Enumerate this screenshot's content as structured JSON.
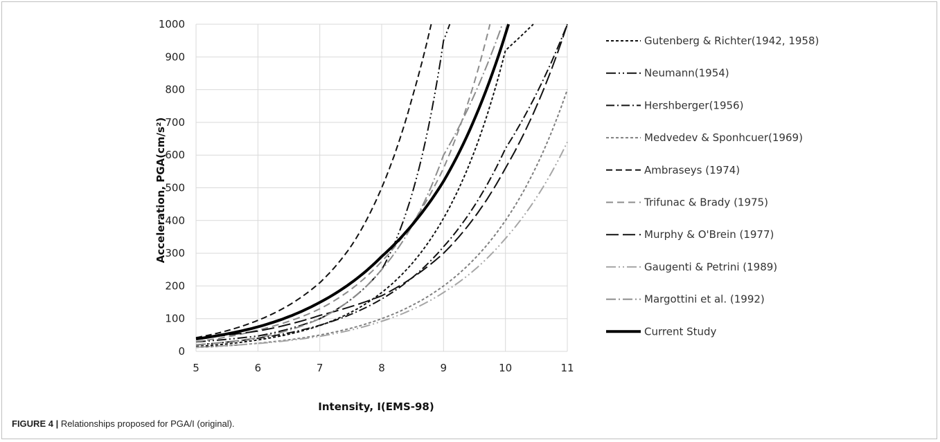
{
  "caption": {
    "label": "FIGURE 4 |",
    "text": " Relationships proposed for PGA/I (original)."
  },
  "chart_data": {
    "type": "line",
    "xlabel": "Intensity, I(EMS-98)",
    "ylabel": "Acceleration, PGA(cm/s²)",
    "xlim": [
      5,
      11
    ],
    "ylim": [
      0,
      1000
    ],
    "x_ticks": [
      5,
      6,
      7,
      8,
      9,
      10,
      11
    ],
    "y_ticks": [
      0,
      100,
      200,
      300,
      400,
      500,
      600,
      700,
      800,
      900,
      1000
    ],
    "grid": "on",
    "legend": "right",
    "series": [
      {
        "name": "Gutenberg & Richter(1942, 1958)",
        "color": "#111111",
        "dash": "4,3",
        "width": 2,
        "x": [
          5,
          6,
          7,
          8,
          9,
          10,
          10.45
        ],
        "y": [
          15,
          35,
          79,
          180,
          407,
          920,
          1000
        ]
      },
      {
        "name": "Neumann(1954)",
        "color": "#111111",
        "dash": "14,4,2,4,2,4",
        "width": 2,
        "x": [
          5,
          6,
          7,
          8,
          9,
          9.1
        ],
        "y": [
          29,
          47,
          100,
          250,
          950,
          1000
        ]
      },
      {
        "name": "Hershberger(1956)",
        "color": "#111111",
        "dash": "12,4,2,4",
        "width": 2,
        "x": [
          5,
          6,
          7,
          8,
          9,
          10,
          11
        ],
        "y": [
          20,
          40,
          80,
          160,
          320,
          620,
          1000
        ]
      },
      {
        "name": "Medvedev & Sponhcuer(1969)",
        "color": "#7f7f7f",
        "dash": "4,3",
        "width": 2,
        "x": [
          5,
          6,
          7,
          8,
          9,
          10,
          11
        ],
        "y": [
          12,
          25,
          50,
          100,
          200,
          400,
          800
        ]
      },
      {
        "name": "Ambraseys (1974)",
        "color": "#111111",
        "dash": "9,5",
        "width": 2,
        "x": [
          5,
          6,
          7,
          7.5,
          8,
          8.5,
          8.8
        ],
        "y": [
          42,
          95,
          210,
          320,
          500,
          780,
          1000
        ]
      },
      {
        "name": "Trifunac & Brady (1975)",
        "color": "#8c8c8c",
        "dash": "10,6",
        "width": 2,
        "x": [
          5,
          6,
          7,
          8,
          9,
          9.75
        ],
        "y": [
          30,
          65,
          130,
          275,
          560,
          1000
        ]
      },
      {
        "name": "Murphy & O'Brein (1977)",
        "color": "#111111",
        "dash": "18,6",
        "width": 2,
        "x": [
          5,
          6,
          7,
          8,
          9,
          10,
          11
        ],
        "y": [
          40,
          62,
          110,
          170,
          300,
          560,
          1000
        ]
      },
      {
        "name": "Gaugenti & Petrini (1989)",
        "color": "#a6a6a6",
        "dash": "14,4,2,4,2,4",
        "width": 2,
        "x": [
          5,
          6,
          7,
          8,
          9,
          10,
          11
        ],
        "y": [
          13,
          24,
          46,
          92,
          180,
          345,
          640
        ]
      },
      {
        "name": "Margottini et al. (1992)",
        "color": "#8c8c8c",
        "dash": "14,4,2,4",
        "width": 2,
        "x": [
          5,
          6,
          7,
          8,
          9,
          9.95
        ],
        "y": [
          20,
          42,
          100,
          250,
          600,
          1000
        ]
      },
      {
        "name": "Current Study",
        "color": "#000000",
        "dash": "",
        "width": 4,
        "x": [
          5,
          6,
          7,
          8,
          9,
          10.05
        ],
        "y": [
          38,
          75,
          150,
          290,
          520,
          1000
        ]
      }
    ]
  }
}
